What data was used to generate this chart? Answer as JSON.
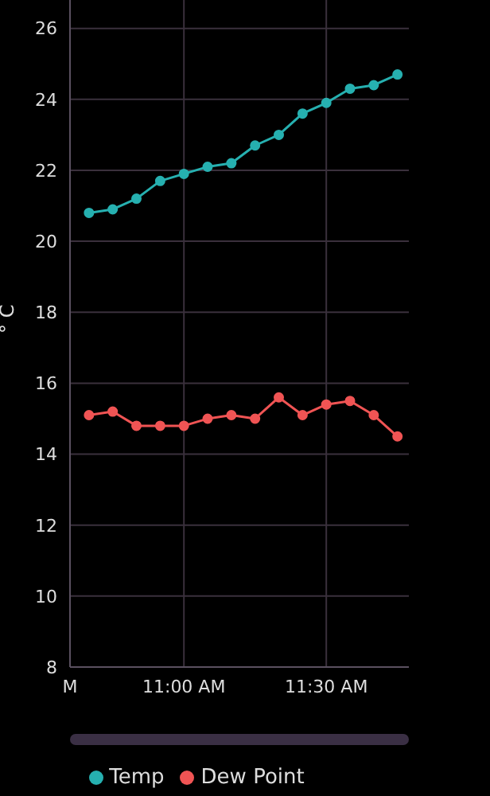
{
  "chart_data": {
    "type": "line",
    "ylabel": "° C",
    "x": [
      10.6667,
      10.75,
      10.8333,
      10.9167,
      11,
      11.0833,
      11.1667,
      11.25,
      11.3333,
      11.4167,
      11.5,
      11.5833,
      11.6667,
      11.75
    ],
    "series": [
      {
        "name": "Temp",
        "color": "#26b0b0",
        "values": [
          20.8,
          20.9,
          21.2,
          21.7,
          21.9,
          22.1,
          22.2,
          22.7,
          23.0,
          23.6,
          23.9,
          24.3,
          24.4,
          24.7
        ]
      },
      {
        "name": "Dew Point",
        "color": "#f05454",
        "values": [
          15.1,
          15.2,
          14.8,
          14.8,
          14.8,
          15.0,
          15.1,
          15.0,
          15.6,
          15.1,
          15.4,
          15.5,
          15.1,
          14.5
        ]
      }
    ],
    "xlim": [
      10.6,
      11.79
    ],
    "xticks": [
      {
        "value": 10.6,
        "label": "M"
      },
      {
        "value": 11,
        "label": "11:00 AM"
      },
      {
        "value": 11.5,
        "label": "11:30 AM"
      }
    ],
    "ylim": [
      8,
      26.8
    ],
    "yticks": [
      8,
      10,
      12,
      14,
      16,
      18,
      20,
      22,
      24,
      26
    ],
    "grid": true,
    "legend": "bottom",
    "marker": "circle",
    "line_style": "solid"
  }
}
